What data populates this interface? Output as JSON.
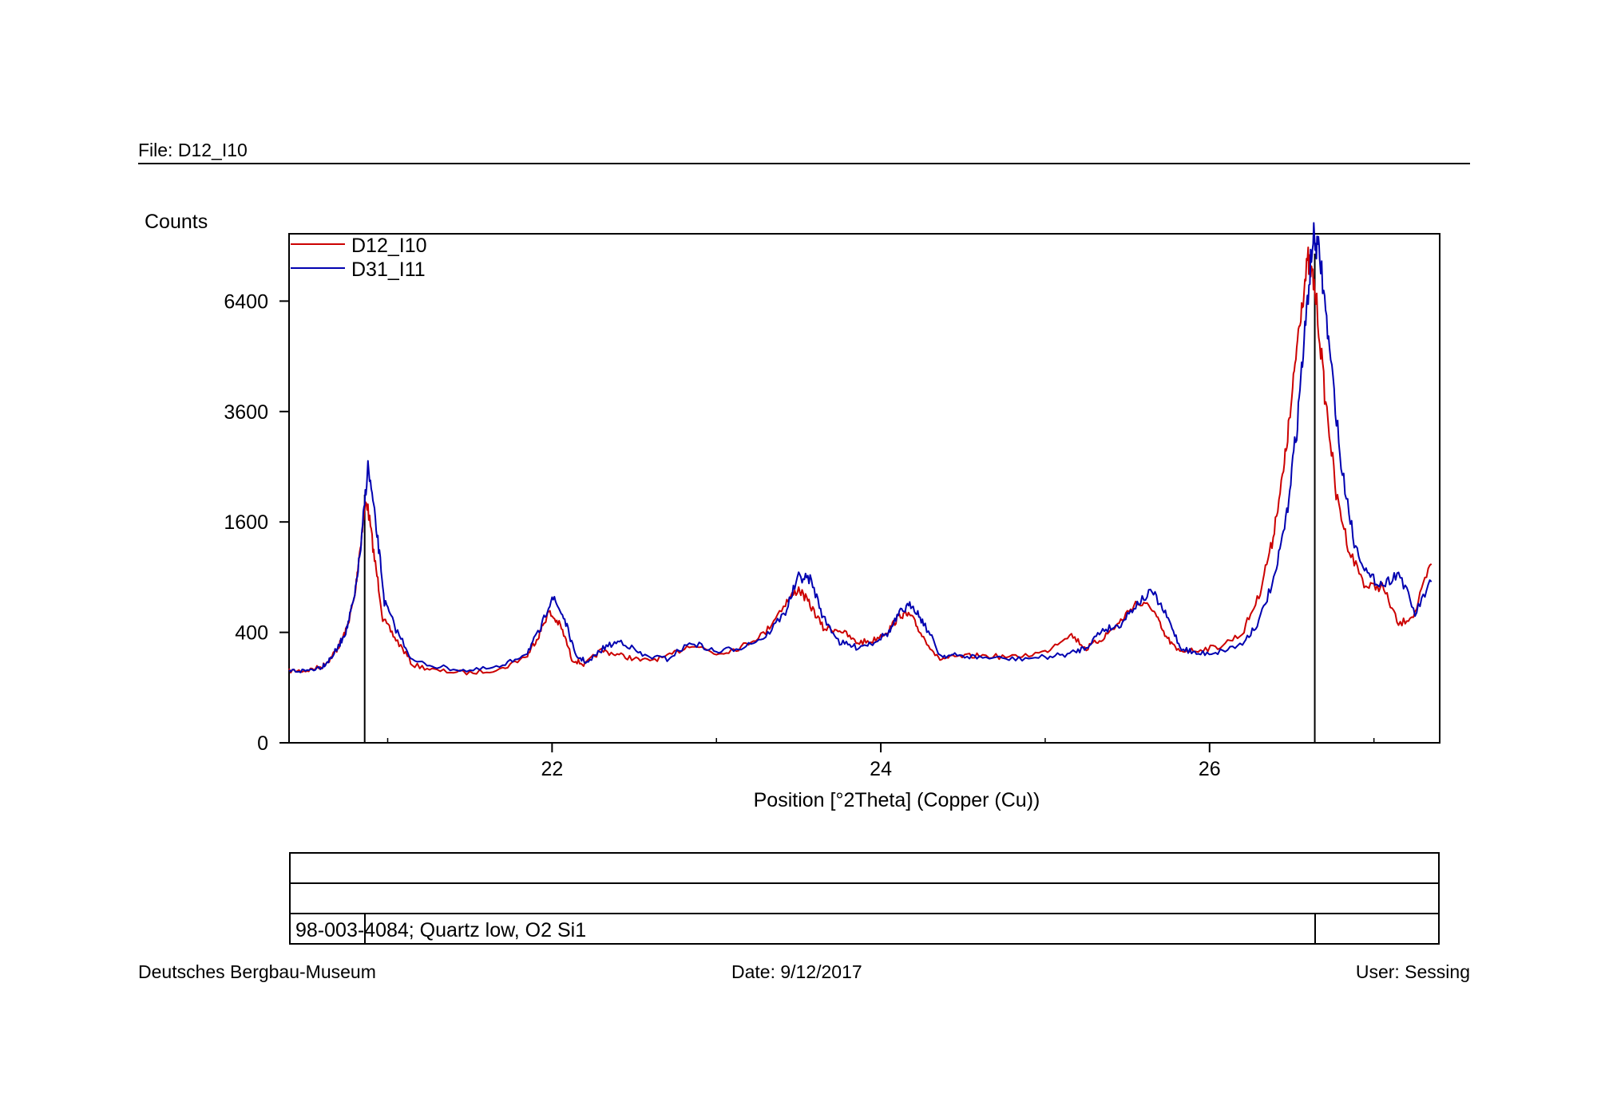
{
  "header": {
    "file_label": "File: D12_I10"
  },
  "footer": {
    "institution": "Deutsches Bergbau-Museum",
    "date": "Date: 9/12/2017",
    "user": "User: Sessing"
  },
  "chart_data": {
    "type": "line",
    "title": "",
    "xlabel": "Position [°2Theta] (Copper (Cu))",
    "ylabel": "Counts",
    "xlim": [
      20.4,
      27.4
    ],
    "ylim": [
      0,
      8500
    ],
    "y_scale": "sqrt",
    "x_ticks": [
      22,
      24,
      26
    ],
    "x_tick_labels": [
      "22",
      "24",
      "26"
    ],
    "x_minor_ticks": [
      21,
      23,
      25,
      27
    ],
    "y_ticks": [
      0,
      400,
      1600,
      3600,
      6400
    ],
    "y_tick_labels": [
      "0",
      "400",
      "1600",
      "3600",
      "6400"
    ],
    "legend_position": "top-left",
    "grid": false,
    "series": [
      {
        "name": "D12_I10",
        "color": "#cc0000",
        "x": [
          20.4,
          20.5,
          20.6,
          20.65,
          20.7,
          20.75,
          20.8,
          20.83,
          20.87,
          20.92,
          20.97,
          21.05,
          21.15,
          21.3,
          21.5,
          21.7,
          21.85,
          21.92,
          21.98,
          22.05,
          22.12,
          22.2,
          22.3,
          22.42,
          22.55,
          22.7,
          22.85,
          23.0,
          23.15,
          23.3,
          23.42,
          23.5,
          23.57,
          23.65,
          23.75,
          23.85,
          23.95,
          24.05,
          24.12,
          24.18,
          24.25,
          24.35,
          24.45,
          24.6,
          24.8,
          25.0,
          25.15,
          25.25,
          25.35,
          25.45,
          25.55,
          25.65,
          25.72,
          25.8,
          25.9,
          26.05,
          26.2,
          26.3,
          26.38,
          26.45,
          26.5,
          26.55,
          26.6,
          26.64,
          26.7,
          26.77,
          26.85,
          26.95,
          27.05,
          27.15,
          27.25,
          27.35
        ],
        "y": [
          170,
          170,
          190,
          230,
          300,
          420,
          700,
          1200,
          1950,
          1100,
          500,
          350,
          200,
          170,
          160,
          180,
          250,
          380,
          560,
          450,
          230,
          200,
          280,
          250,
          220,
          240,
          320,
          260,
          300,
          400,
          640,
          780,
          620,
          430,
          420,
          330,
          340,
          420,
          540,
          530,
          380,
          230,
          240,
          250,
          240,
          270,
          390,
          290,
          360,
          470,
          640,
          600,
          390,
          280,
          280,
          300,
          390,
          700,
          1300,
          2400,
          3800,
          6000,
          7600,
          6800,
          4000,
          2000,
          1200,
          800,
          800,
          450,
          550,
          1050
        ]
      },
      {
        "name": "D31_I11",
        "color": "#0000b0",
        "x": [
          20.4,
          20.5,
          20.6,
          20.65,
          20.7,
          20.75,
          20.8,
          20.84,
          20.88,
          20.93,
          20.98,
          21.05,
          21.15,
          21.3,
          21.5,
          21.7,
          21.85,
          21.93,
          22.0,
          22.07,
          22.14,
          22.22,
          22.32,
          22.42,
          22.55,
          22.7,
          22.85,
          23.0,
          23.15,
          23.3,
          23.42,
          23.5,
          23.57,
          23.65,
          23.75,
          23.85,
          23.95,
          24.05,
          24.12,
          24.19,
          24.26,
          24.36,
          24.45,
          24.6,
          24.8,
          25.0,
          25.15,
          25.25,
          25.35,
          25.45,
          25.55,
          25.65,
          25.74,
          25.82,
          25.92,
          26.05,
          26.2,
          26.3,
          26.4,
          26.47,
          26.53,
          26.58,
          26.63,
          26.67,
          26.73,
          26.8,
          26.88,
          26.97,
          27.06,
          27.15,
          27.25,
          27.35
        ],
        "y": [
          170,
          170,
          190,
          230,
          300,
          420,
          700,
          1300,
          2500,
          1500,
          650,
          420,
          220,
          190,
          170,
          190,
          270,
          420,
          700,
          520,
          250,
          210,
          300,
          340,
          250,
          230,
          330,
          270,
          300,
          370,
          560,
          900,
          880,
          510,
          330,
          300,
          330,
          400,
          560,
          630,
          470,
          250,
          250,
          240,
          230,
          240,
          260,
          300,
          420,
          450,
          620,
          750,
          520,
          300,
          260,
          270,
          320,
          480,
          900,
          1700,
          3200,
          5500,
          8400,
          7800,
          5000,
          2500,
          1300,
          900,
          820,
          950,
          540,
          850
        ]
      }
    ],
    "reference_pattern": {
      "name": "98-003-4084; Quartz low, O2 Si1",
      "peaks": [
        {
          "x": 20.86,
          "y": 2020
        },
        {
          "x": 26.64,
          "y": 7850
        }
      ]
    }
  }
}
